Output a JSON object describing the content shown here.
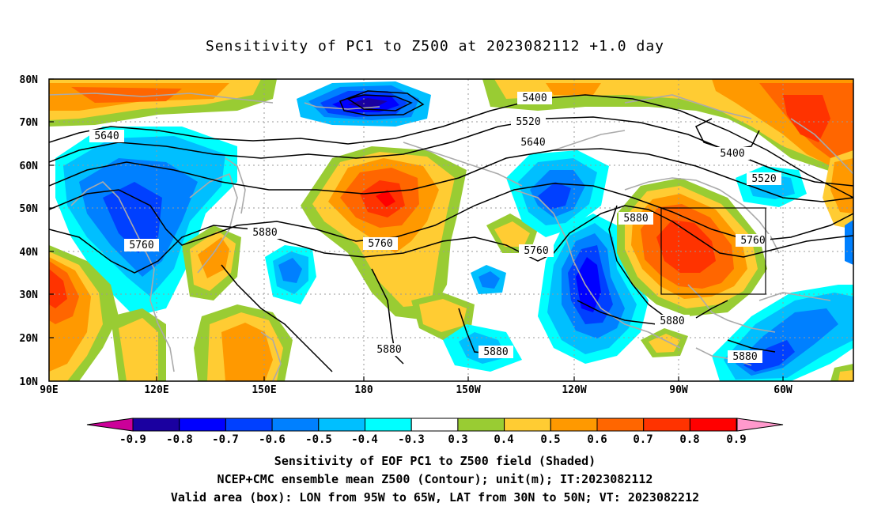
{
  "title": "Sensitivity of PC1 to Z500 at 2023082112 +1.0 day",
  "map": {
    "lat_labels": [
      "80N",
      "70N",
      "60N",
      "50N",
      "40N",
      "30N",
      "20N",
      "10N"
    ],
    "lon_labels": [
      "90E",
      "120E",
      "150E",
      "180",
      "150W",
      "120W",
      "90W",
      "60W"
    ],
    "contour_labels": [
      {
        "text": "5400"
      },
      {
        "text": "5400"
      },
      {
        "text": "5520"
      },
      {
        "text": "5520"
      },
      {
        "text": "5640"
      },
      {
        "text": "5640"
      },
      {
        "text": "5760"
      },
      {
        "text": "5760"
      },
      {
        "text": "5760"
      },
      {
        "text": "5760"
      },
      {
        "text": "5880"
      },
      {
        "text": "5880"
      },
      {
        "text": "5880"
      },
      {
        "text": "5880"
      },
      {
        "text": "5880"
      },
      {
        "text": "5880"
      }
    ],
    "valid_box": {
      "lon_min": "95W",
      "lon_max": "65W",
      "lat_min": "30N",
      "lat_max": "50N"
    }
  },
  "colorbar": {
    "labels": [
      "-0.9",
      "-0.8",
      "-0.7",
      "-0.6",
      "-0.5",
      "-0.4",
      "-0.3",
      "0.3",
      "0.4",
      "0.5",
      "0.6",
      "0.7",
      "0.8",
      "0.9"
    ],
    "colors": [
      "#1a00a0",
      "#0000ff",
      "#0040ff",
      "#0080ff",
      "#00bfff",
      "#00ffff",
      "#ffffff",
      "#99cc33",
      "#ffcc33",
      "#ff9900",
      "#ff6600",
      "#ff3300",
      "#ff0000"
    ],
    "min_color": "#cc0099",
    "max_color": "#ff99cc"
  },
  "captions": {
    "line1": "Sensitivity of EOF PC1 to Z500 field (Shaded)",
    "line2": "NCEP+CMC ensemble mean Z500 (Contour); unit(m); IT:2023082112",
    "line3": "Valid area (box): LON from 95W to 65W, LAT from 30N to 50N; VT: 2023082212"
  }
}
